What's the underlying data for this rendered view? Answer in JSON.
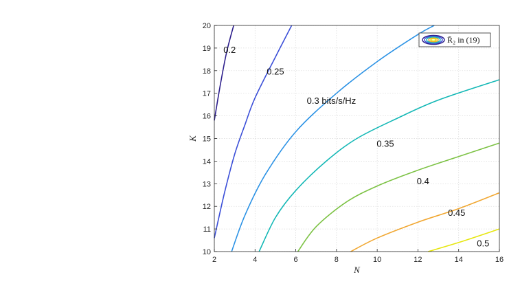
{
  "chart_data": {
    "type": "line",
    "title": "",
    "xlabel": "N",
    "ylabel": "K",
    "xlim": [
      2,
      16
    ],
    "ylim": [
      10,
      20
    ],
    "x_ticks": [
      2,
      4,
      6,
      8,
      10,
      12,
      14,
      16
    ],
    "y_ticks": [
      10,
      11,
      12,
      13,
      14,
      15,
      16,
      17,
      18,
      19,
      20
    ],
    "grid": true,
    "legend": {
      "text": "R̄₂ in (19)",
      "placement": "top-right"
    },
    "contour_levels": [
      {
        "label": "0.2",
        "value": 0.2,
        "color": "#2d1f8c",
        "points": [
          [
            2.0,
            15.8
          ],
          [
            2.3,
            17.4
          ],
          [
            2.6,
            18.8
          ],
          [
            2.95,
            20.0
          ]
        ]
      },
      {
        "label": "0.25",
        "value": 0.25,
        "color": "#3b4fd8",
        "points": [
          [
            2.0,
            10.6
          ],
          [
            2.5,
            12.6
          ],
          [
            3.0,
            14.3
          ],
          [
            3.5,
            15.6
          ],
          [
            4.0,
            16.8
          ],
          [
            5.0,
            18.6
          ],
          [
            5.8,
            20.0
          ]
        ]
      },
      {
        "label": "0.3 bits/s/Hz",
        "value": 0.3,
        "color": "#2b92e5",
        "points": [
          [
            2.85,
            10.0
          ],
          [
            3.5,
            11.6
          ],
          [
            4.5,
            13.4
          ],
          [
            6.0,
            15.3
          ],
          [
            8.0,
            17.0
          ],
          [
            10.0,
            18.4
          ],
          [
            12.0,
            19.6
          ],
          [
            12.8,
            20.0
          ]
        ]
      },
      {
        "label": "0.35",
        "value": 0.35,
        "color": "#14b8b6",
        "points": [
          [
            4.2,
            10.0
          ],
          [
            5.0,
            11.5
          ],
          [
            6.0,
            12.7
          ],
          [
            7.5,
            14.0
          ],
          [
            9.0,
            15.0
          ],
          [
            11.0,
            15.9
          ],
          [
            13.0,
            16.7
          ],
          [
            16.0,
            17.6
          ]
        ]
      },
      {
        "label": "0.4",
        "value": 0.4,
        "color": "#7cc244",
        "points": [
          [
            6.1,
            10.0
          ],
          [
            7.0,
            11.1
          ],
          [
            8.5,
            12.2
          ],
          [
            10.0,
            12.9
          ],
          [
            12.0,
            13.6
          ],
          [
            14.0,
            14.2
          ],
          [
            16.0,
            14.8
          ]
        ]
      },
      {
        "label": "0.45",
        "value": 0.45,
        "color": "#f1a731",
        "points": [
          [
            8.7,
            10.0
          ],
          [
            10.0,
            10.6
          ],
          [
            12.0,
            11.3
          ],
          [
            14.0,
            11.9
          ],
          [
            16.0,
            12.6
          ]
        ]
      },
      {
        "label": "0.5",
        "value": 0.5,
        "color": "#e6e60e",
        "points": [
          [
            12.5,
            10.0
          ],
          [
            14.0,
            10.4
          ],
          [
            16.0,
            11.0
          ]
        ]
      }
    ],
    "contour_label_positions": [
      {
        "text": "0.2",
        "x": 2.75,
        "y": 18.9
      },
      {
        "text": "0.25",
        "x": 5.0,
        "y": 17.95
      },
      {
        "text": "0.3 bits/s/Hz",
        "x": 7.75,
        "y": 16.65
      },
      {
        "text": "0.35",
        "x": 10.4,
        "y": 14.75
      },
      {
        "text": "0.4",
        "x": 12.25,
        "y": 13.1
      },
      {
        "text": "0.45",
        "x": 13.9,
        "y": 11.7
      },
      {
        "text": "0.5",
        "x": 15.2,
        "y": 10.35
      }
    ]
  }
}
